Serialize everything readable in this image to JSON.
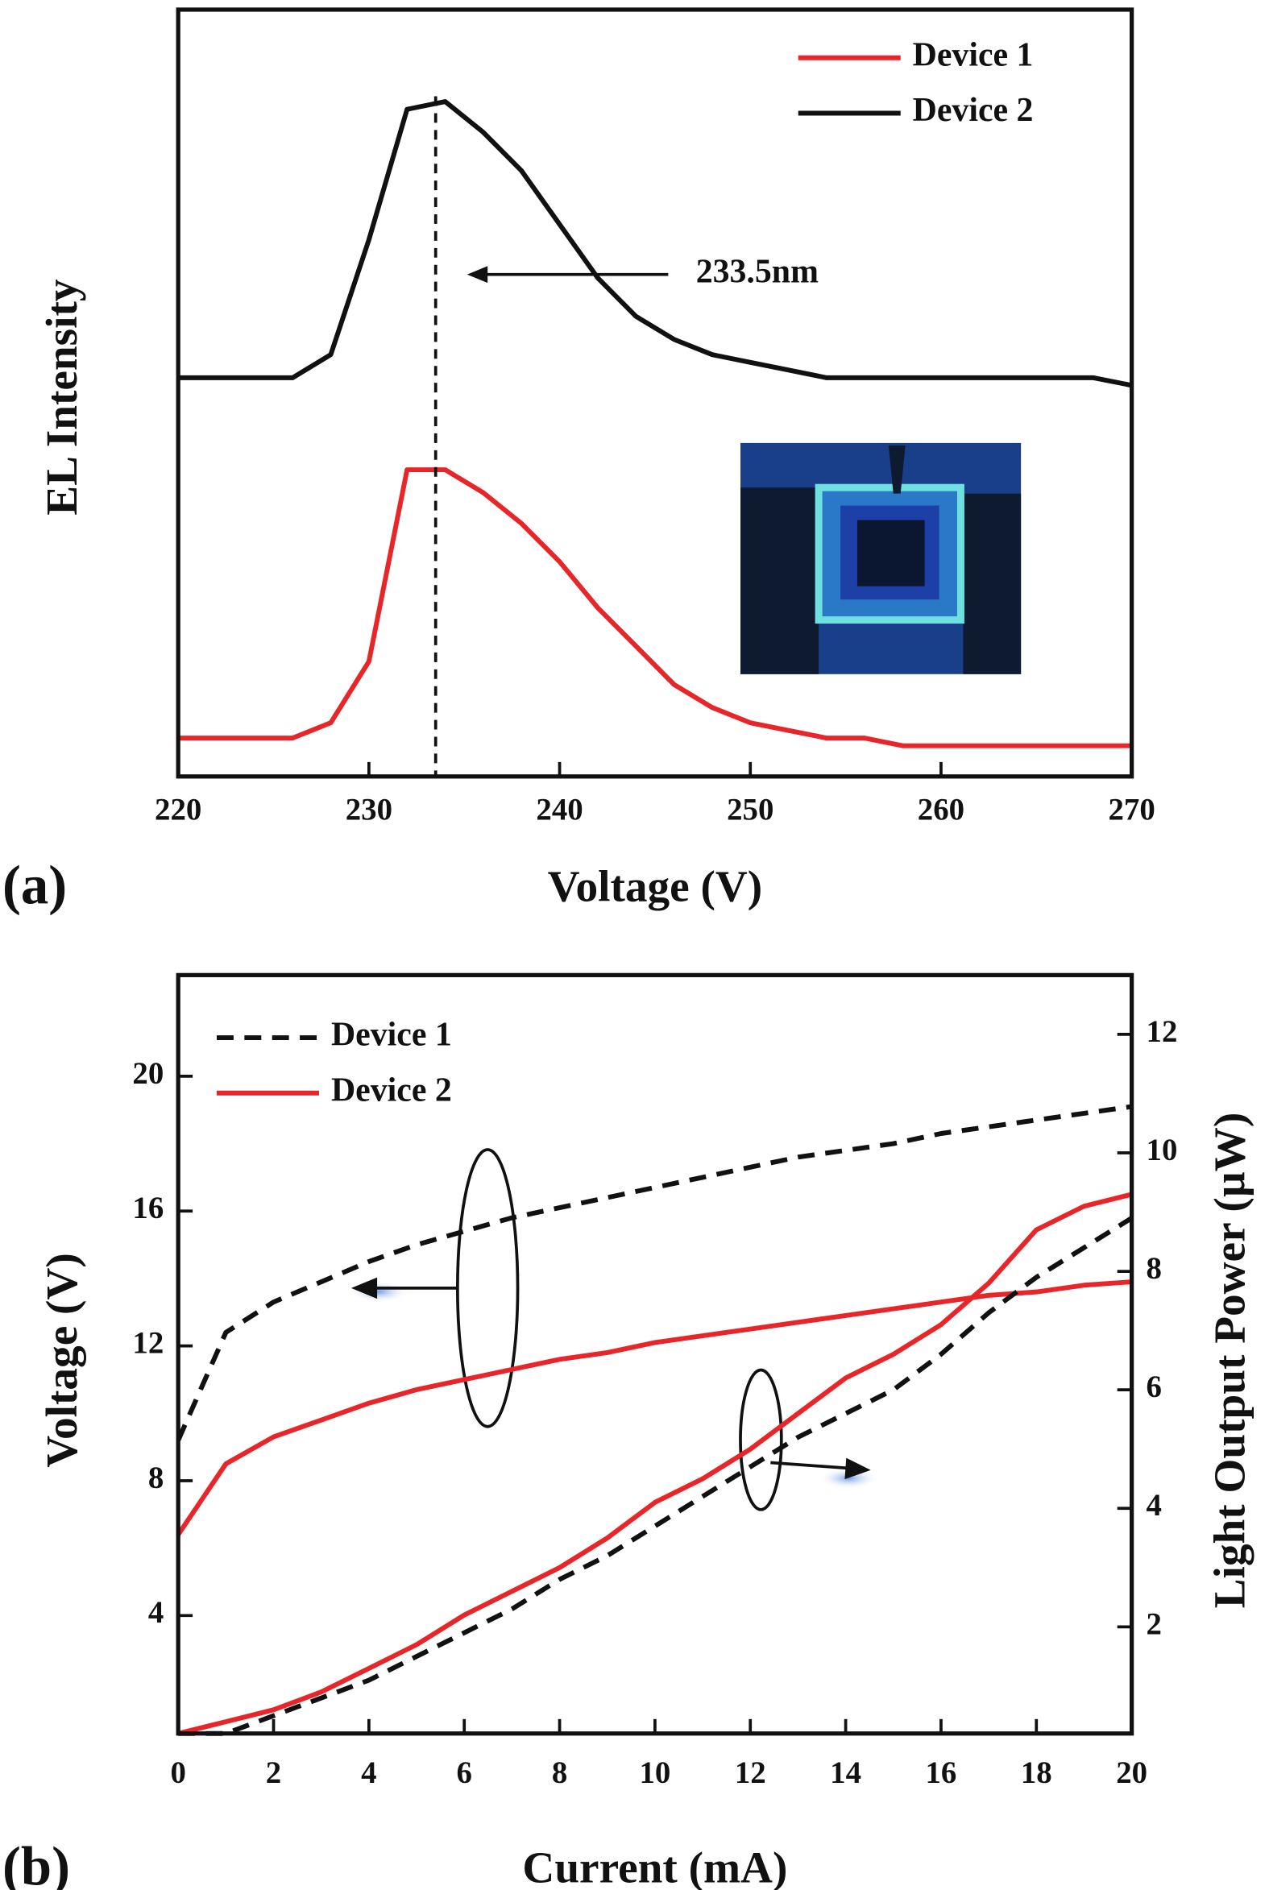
{
  "chart_data": [
    {
      "type": "line",
      "panel_label": "(a)",
      "xlabel": "Voltage (V)",
      "ylabel": "EL Intensity",
      "legend": "upper right",
      "xlim": [
        220,
        270
      ],
      "xticks": [
        220,
        230,
        240,
        250,
        260,
        270
      ],
      "ylim": [
        0,
        1
      ],
      "x": [
        220,
        222,
        224,
        226,
        228,
        230,
        232,
        234,
        236,
        238,
        240,
        242,
        244,
        246,
        248,
        250,
        252,
        254,
        256,
        258,
        260,
        262,
        264,
        266,
        268,
        270
      ],
      "series": [
        {
          "name": "Device 1",
          "color": "#e8262a",
          "dashed": false,
          "values": [
            0.05,
            0.05,
            0.05,
            0.05,
            0.07,
            0.15,
            0.4,
            0.4,
            0.37,
            0.33,
            0.28,
            0.22,
            0.17,
            0.12,
            0.09,
            0.07,
            0.06,
            0.05,
            0.05,
            0.04,
            0.04,
            0.04,
            0.04,
            0.04,
            0.04,
            0.04
          ]
        },
        {
          "name": "Device 2",
          "color": "#111111",
          "dashed": false,
          "values": [
            0.52,
            0.52,
            0.52,
            0.52,
            0.55,
            0.7,
            0.87,
            0.88,
            0.84,
            0.79,
            0.72,
            0.65,
            0.6,
            0.57,
            0.55,
            0.54,
            0.53,
            0.52,
            0.52,
            0.52,
            0.52,
            0.52,
            0.52,
            0.52,
            0.52,
            0.51
          ]
        }
      ],
      "annotation": {
        "text": "233.5nm",
        "x": 233.5
      }
    },
    {
      "type": "line",
      "panel_label": "(b)",
      "xlabel": "Current (mA)",
      "ylabel": "Voltage (V)",
      "y2label": "Light Output Power (µW)",
      "legend": "upper left",
      "xlim": [
        0,
        20
      ],
      "xticks": [
        0,
        2,
        4,
        6,
        8,
        10,
        12,
        14,
        16,
        18,
        20
      ],
      "ylim": [
        0.5,
        23
      ],
      "yticks": [
        4,
        8,
        12,
        16,
        20
      ],
      "y2lim": [
        0.2,
        13
      ],
      "y2ticks": [
        2,
        4,
        6,
        8,
        10,
        12
      ],
      "x": [
        0,
        1,
        2,
        3,
        4,
        5,
        6,
        7,
        8,
        9,
        10,
        11,
        12,
        13,
        14,
        15,
        16,
        17,
        18,
        19,
        20
      ],
      "series": [
        {
          "name": "Device 1",
          "color": "#111111",
          "dashed": true,
          "values": [
            9.2,
            12.4,
            13.3,
            13.9,
            14.5,
            15.0,
            15.4,
            15.8,
            16.1,
            16.4,
            16.7,
            17.0,
            17.3,
            17.6,
            17.8,
            18.0,
            18.3,
            18.5,
            18.7,
            18.9,
            19.1
          ]
        },
        {
          "name": "Device 2",
          "color": "#e8262a",
          "dashed": false,
          "values": [
            6.4,
            8.5,
            9.3,
            9.8,
            10.3,
            10.7,
            11.0,
            11.3,
            11.6,
            11.8,
            12.1,
            12.3,
            12.5,
            12.7,
            12.9,
            13.1,
            13.3,
            13.5,
            13.6,
            13.8,
            13.9
          ]
        },
        {
          "color": "#111111",
          "dashed": true,
          "axis": "y2",
          "values": [
            0.2,
            0.2,
            0.5,
            0.8,
            1.1,
            1.5,
            1.9,
            2.3,
            2.8,
            3.2,
            3.7,
            4.2,
            4.7,
            5.2,
            5.6,
            6.0,
            6.6,
            7.3,
            7.9,
            8.4,
            8.9
          ]
        },
        {
          "color": "#e8262a",
          "dashed": false,
          "axis": "y2",
          "values": [
            0.2,
            0.4,
            0.6,
            0.9,
            1.3,
            1.7,
            2.2,
            2.6,
            3.0,
            3.5,
            4.1,
            4.5,
            5.0,
            5.6,
            6.2,
            6.6,
            7.1,
            7.8,
            8.7,
            9.1,
            9.3
          ]
        }
      ]
    }
  ]
}
